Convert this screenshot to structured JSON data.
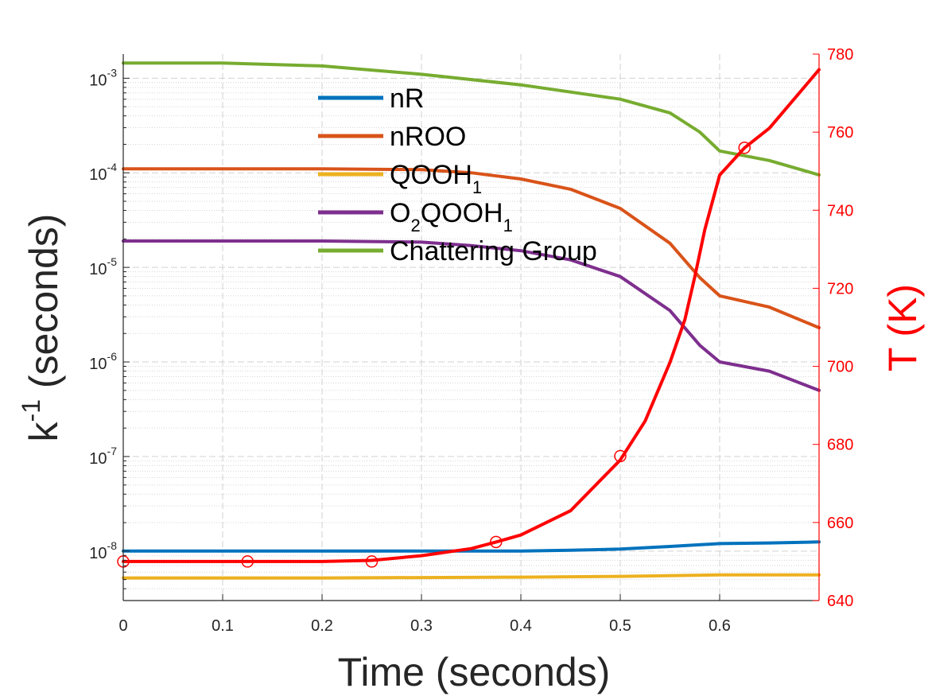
{
  "chart_data": {
    "type": "line",
    "x_label": "Time (seconds)",
    "y_left_label": {
      "base": "k",
      "exp": "-1",
      "rest": " (seconds)"
    },
    "y_right_label": "T (K)",
    "xlim": [
      0,
      0.7
    ],
    "x_ticks": [
      0,
      0.1,
      0.2,
      0.3,
      0.4,
      0.5,
      0.6
    ],
    "x_tick_labels": [
      "0",
      "0.1",
      "0.2",
      "0.3",
      "0.4",
      "0.5",
      "0.6"
    ],
    "y_left_scale": "log",
    "y_left_lim": [
      3e-09,
      0.0018
    ],
    "y_left_ticks": [
      {
        "base": "10",
        "exp": "-8"
      },
      {
        "base": "10",
        "exp": "-7"
      },
      {
        "base": "10",
        "exp": "-6"
      },
      {
        "base": "10",
        "exp": "-5"
      },
      {
        "base": "10",
        "exp": "-4"
      },
      {
        "base": "10",
        "exp": "-3"
      }
    ],
    "y_left_tick_exps": [
      -8,
      -7,
      -6,
      -5,
      -4,
      -3
    ],
    "y_right_lim": [
      640,
      780
    ],
    "y_right_ticks": [
      "640",
      "660",
      "680",
      "700",
      "720",
      "740",
      "760",
      "780"
    ],
    "grid": "on (dashed major, dotted minor)",
    "legend_position": "upper-middle",
    "series": [
      {
        "name": "nR",
        "color": "#0072BD",
        "axis": "left",
        "x": [
          0,
          0.1,
          0.2,
          0.3,
          0.4,
          0.45,
          0.5,
          0.55,
          0.6,
          0.65,
          0.7
        ],
        "y": [
          1e-08,
          1e-08,
          1e-08,
          1e-08,
          1e-08,
          1.02e-08,
          1.05e-08,
          1.12e-08,
          1.2e-08,
          1.22e-08,
          1.25e-08
        ]
      },
      {
        "name": "nROO",
        "color": "#D95319",
        "axis": "left",
        "x": [
          0,
          0.1,
          0.2,
          0.3,
          0.35,
          0.4,
          0.45,
          0.5,
          0.55,
          0.58,
          0.6,
          0.65,
          0.7
        ],
        "y": [
          0.00011,
          0.00011,
          0.00011,
          0.000108,
          0.0001,
          8.6e-05,
          6.7e-05,
          4.2e-05,
          1.8e-05,
          7.8e-06,
          5e-06,
          3.8e-06,
          2.3e-06
        ]
      },
      {
        "name": "QOOH",
        "name_sub": "1",
        "color": "#EDB120",
        "axis": "left",
        "x": [
          0,
          0.2,
          0.4,
          0.5,
          0.6,
          0.7
        ],
        "y": [
          5.2e-09,
          5.2e-09,
          5.3e-09,
          5.4e-09,
          5.6e-09,
          5.6e-09
        ]
      },
      {
        "name_pre": "O",
        "name_pre_sub": "2",
        "name": "QOOH",
        "name_sub": "1",
        "color": "#7E2F8E",
        "axis": "left",
        "x": [
          0,
          0.1,
          0.2,
          0.3,
          0.35,
          0.4,
          0.45,
          0.5,
          0.55,
          0.58,
          0.6,
          0.65,
          0.7
        ],
        "y": [
          1.9e-05,
          1.9e-05,
          1.9e-05,
          1.85e-05,
          1.7e-05,
          1.5e-05,
          1.2e-05,
          8e-06,
          3.5e-06,
          1.5e-06,
          1e-06,
          8e-07,
          5e-07
        ]
      },
      {
        "name": "Chattering Group",
        "color": "#77AC30",
        "axis": "left",
        "x": [
          0,
          0.1,
          0.2,
          0.3,
          0.4,
          0.5,
          0.55,
          0.58,
          0.6,
          0.65,
          0.7
        ],
        "y": [
          0.00145,
          0.00145,
          0.00135,
          0.0011,
          0.00085,
          0.0006,
          0.00043,
          0.00027,
          0.00017,
          0.000135,
          9.5e-05
        ]
      },
      {
        "name": "T",
        "color": "#FF0000",
        "axis": "right",
        "in_legend": false,
        "x": [
          0,
          0.1,
          0.2,
          0.25,
          0.3,
          0.35,
          0.375,
          0.4,
          0.45,
          0.5,
          0.525,
          0.55,
          0.565,
          0.575,
          0.585,
          0.6,
          0.625,
          0.65,
          0.7
        ],
        "y": [
          650,
          650,
          650,
          650.3,
          651.5,
          653.3,
          655,
          656.8,
          663,
          676,
          686,
          701,
          712,
          723,
          735,
          749,
          756,
          761,
          776
        ]
      }
    ],
    "markers": {
      "series": "T",
      "shape": "open-circle",
      "x": [
        0,
        0.125,
        0.25,
        0.375,
        0.5,
        0.625
      ],
      "y": [
        650,
        650,
        650,
        655,
        677,
        756
      ]
    }
  }
}
